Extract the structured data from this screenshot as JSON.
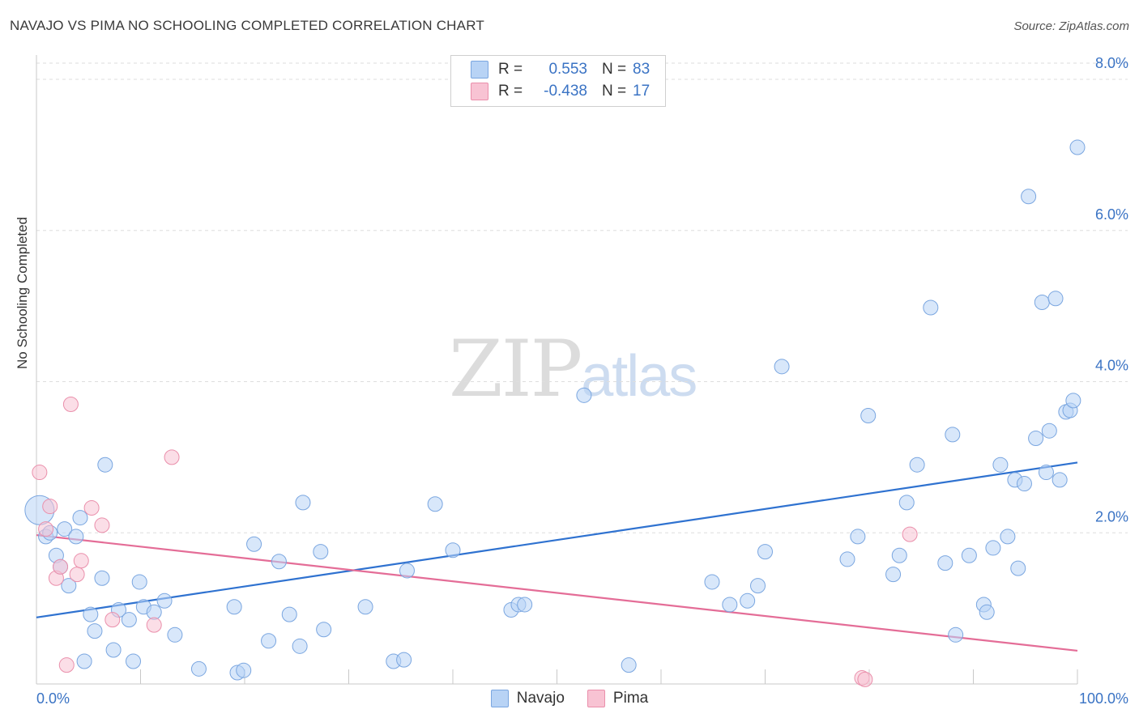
{
  "title": "NAVAJO VS PIMA NO SCHOOLING COMPLETED CORRELATION CHART",
  "source": "Source: ZipAtlas.com",
  "watermark": {
    "zip": "ZIP",
    "atlas": "atlas"
  },
  "colors": {
    "navajo_fill": "#b8d3f5",
    "navajo_stroke": "#7aa6e0",
    "navajo_line": "#2f72d0",
    "pima_fill": "#f8c3d3",
    "pima_stroke": "#ea8fab",
    "pima_line": "#e46d97",
    "axis_text": "#3a73c4"
  },
  "legend": {
    "r_label": "R =",
    "n_label": "N =",
    "navajo": {
      "r": "0.553",
      "n": "83"
    },
    "pima": {
      "r": "-0.438",
      "n": "17"
    }
  },
  "chart_data": {
    "type": "scatter",
    "title": "NAVAJO VS PIMA NO SCHOOLING COMPLETED CORRELATION CHART",
    "ylabel": "No Schooling Completed",
    "xlabel": "",
    "xlim": [
      0,
      100
    ],
    "ylim": [
      0,
      8.3
    ],
    "x_tick_labels": [
      "0.0%",
      "100.0%"
    ],
    "y_ticks": [
      2,
      4,
      6,
      8
    ],
    "y_tick_labels": [
      "2.0%",
      "4.0%",
      "6.0%",
      "8.0%"
    ],
    "grid": "horizontal dashed",
    "legend_position": "bottom-center",
    "series": [
      {
        "name": "Navajo",
        "trend": {
          "x": [
            0,
            100
          ],
          "y": [
            0.88,
            2.93
          ]
        },
        "points": [
          [
            0.3,
            2.3
          ],
          [
            0.9,
            1.95
          ],
          [
            1.3,
            2.0
          ],
          [
            1.9,
            1.7
          ],
          [
            2.3,
            1.55
          ],
          [
            2.7,
            2.05
          ],
          [
            3.1,
            1.3
          ],
          [
            3.8,
            1.95
          ],
          [
            4.2,
            2.2
          ],
          [
            4.6,
            0.3
          ],
          [
            5.2,
            0.92
          ],
          [
            5.6,
            0.7
          ],
          [
            6.3,
            1.4
          ],
          [
            6.6,
            2.9
          ],
          [
            7.4,
            0.45
          ],
          [
            7.9,
            0.98
          ],
          [
            8.9,
            0.85
          ],
          [
            9.3,
            0.3
          ],
          [
            9.9,
            1.35
          ],
          [
            10.3,
            1.02
          ],
          [
            11.3,
            0.95
          ],
          [
            12.3,
            1.1
          ],
          [
            13.3,
            0.65
          ],
          [
            15.6,
            0.2
          ],
          [
            19.0,
            1.02
          ],
          [
            19.3,
            0.15
          ],
          [
            19.9,
            0.18
          ],
          [
            20.9,
            1.85
          ],
          [
            22.3,
            0.57
          ],
          [
            23.3,
            1.62
          ],
          [
            24.3,
            0.92
          ],
          [
            25.3,
            0.5
          ],
          [
            25.6,
            2.4
          ],
          [
            27.3,
            1.75
          ],
          [
            27.6,
            0.72
          ],
          [
            31.6,
            1.02
          ],
          [
            34.3,
            0.3
          ],
          [
            35.3,
            0.32
          ],
          [
            35.6,
            1.5
          ],
          [
            38.3,
            2.38
          ],
          [
            40.0,
            1.77
          ],
          [
            45.6,
            0.98
          ],
          [
            46.3,
            1.05
          ],
          [
            46.9,
            1.05
          ],
          [
            52.6,
            3.82
          ],
          [
            56.9,
            0.25
          ],
          [
            64.9,
            1.35
          ],
          [
            66.6,
            1.05
          ],
          [
            68.3,
            1.1
          ],
          [
            69.3,
            1.3
          ],
          [
            70.0,
            1.75
          ],
          [
            71.6,
            4.2
          ],
          [
            77.9,
            1.65
          ],
          [
            78.9,
            1.95
          ],
          [
            79.9,
            3.55
          ],
          [
            82.3,
            1.45
          ],
          [
            82.9,
            1.7
          ],
          [
            83.6,
            2.4
          ],
          [
            84.6,
            2.9
          ],
          [
            85.9,
            4.98
          ],
          [
            87.3,
            1.6
          ],
          [
            88.0,
            3.3
          ],
          [
            88.3,
            0.65
          ],
          [
            89.6,
            1.7
          ],
          [
            91.0,
            1.05
          ],
          [
            91.3,
            0.95
          ],
          [
            91.9,
            1.8
          ],
          [
            92.6,
            2.9
          ],
          [
            93.3,
            1.95
          ],
          [
            94.0,
            2.7
          ],
          [
            94.3,
            1.53
          ],
          [
            94.9,
            2.65
          ],
          [
            95.3,
            6.45
          ],
          [
            96.0,
            3.25
          ],
          [
            96.6,
            5.05
          ],
          [
            97.0,
            2.8
          ],
          [
            97.3,
            3.35
          ],
          [
            97.9,
            5.1
          ],
          [
            98.3,
            2.7
          ],
          [
            98.9,
            3.6
          ],
          [
            99.3,
            3.62
          ],
          [
            99.6,
            3.75
          ],
          [
            100.0,
            7.1
          ]
        ]
      },
      {
        "name": "Pima",
        "trend": {
          "x": [
            0,
            100
          ],
          "y": [
            1.97,
            0.44
          ]
        },
        "points": [
          [
            0.3,
            2.8
          ],
          [
            0.9,
            2.05
          ],
          [
            1.3,
            2.35
          ],
          [
            1.9,
            1.4
          ],
          [
            2.3,
            1.55
          ],
          [
            2.9,
            0.25
          ],
          [
            3.3,
            3.7
          ],
          [
            3.9,
            1.45
          ],
          [
            4.3,
            1.63
          ],
          [
            5.3,
            2.33
          ],
          [
            6.3,
            2.1
          ],
          [
            7.3,
            0.85
          ],
          [
            11.3,
            0.78
          ],
          [
            13.0,
            3.0
          ],
          [
            79.3,
            0.08
          ],
          [
            79.6,
            0.06
          ],
          [
            83.9,
            1.98
          ]
        ]
      }
    ]
  }
}
